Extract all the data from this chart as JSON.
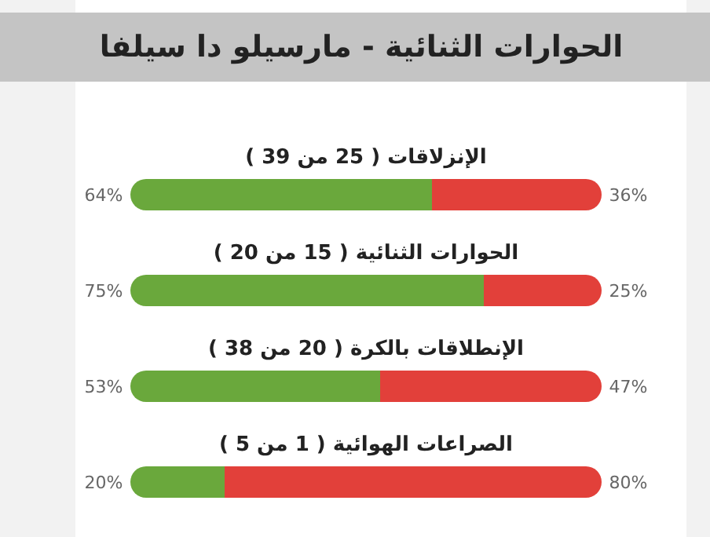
{
  "chart_data": {
    "type": "bar",
    "title": "الحوارات الثنائية - مارسيلو دا سيلفا",
    "orientation": "horizontal",
    "stacked": true,
    "xlim": [
      0,
      100
    ],
    "tick_labels": false,
    "categories": [
      "الإنزلاقات ( 25 من 39 )",
      "الحوارات الثنائية ( 15 من 20 )",
      "الإنطلاقات بالكرة ( 20 من 38 )",
      "الصراعات الهوائية ( 1 من 5 )"
    ],
    "series": [
      {
        "color": "#6aa83c",
        "values": [
          64,
          75,
          53,
          20
        ],
        "value_labels": [
          "64%",
          "75%",
          "53%",
          "20%"
        ]
      },
      {
        "color": "#e2403a",
        "values": [
          36,
          25,
          47,
          80
        ],
        "value_labels": [
          "36%",
          "25%",
          "47%",
          "80%"
        ]
      }
    ]
  }
}
